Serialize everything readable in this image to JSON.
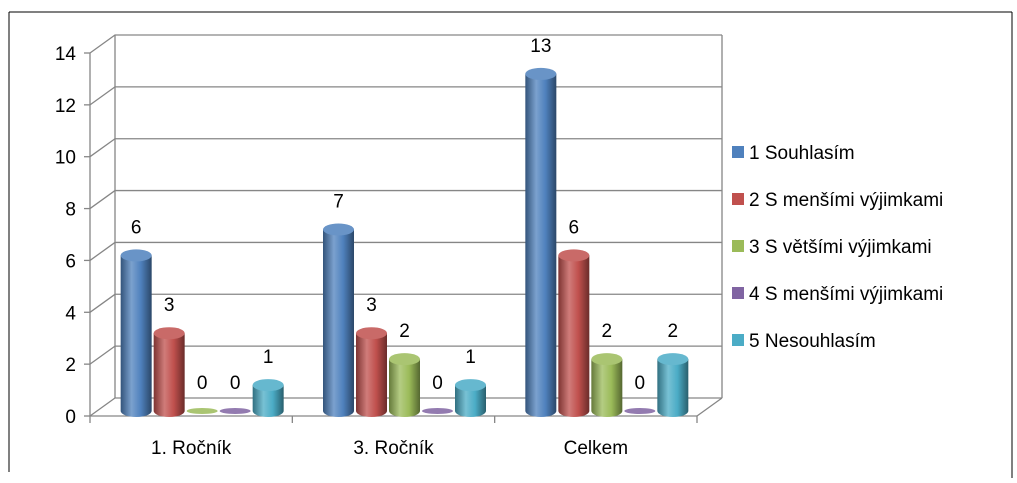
{
  "chart_data": {
    "type": "bar",
    "title": "",
    "xlabel": "",
    "ylabel": "",
    "categories": [
      "1. Ročník",
      "3. Ročník",
      "Celkem"
    ],
    "series": [
      {
        "name": "1 Souhlasím",
        "values": [
          6,
          7,
          13
        ],
        "color": "#4F81BD"
      },
      {
        "name": "2 S menšími výjimkami",
        "values": [
          3,
          3,
          6
        ],
        "color": "#C0504D"
      },
      {
        "name": "3 S většími výjimkami",
        "values": [
          0,
          2,
          2
        ],
        "color": "#9BBB59"
      },
      {
        "name": "4 S menšími výjimkami",
        "values": [
          0,
          0,
          0
        ],
        "color": "#8064A2"
      },
      {
        "name": "5 Nesouhlasím",
        "values": [
          1,
          1,
          2
        ],
        "color": "#4BACC6"
      }
    ],
    "ylim": [
      0,
      14
    ],
    "yticks": [
      "0",
      "2",
      "4",
      "6",
      "8",
      "10",
      "12",
      "14"
    ],
    "data_labels": true,
    "grid": true,
    "legend": "right",
    "style": "3d-cylinder"
  }
}
